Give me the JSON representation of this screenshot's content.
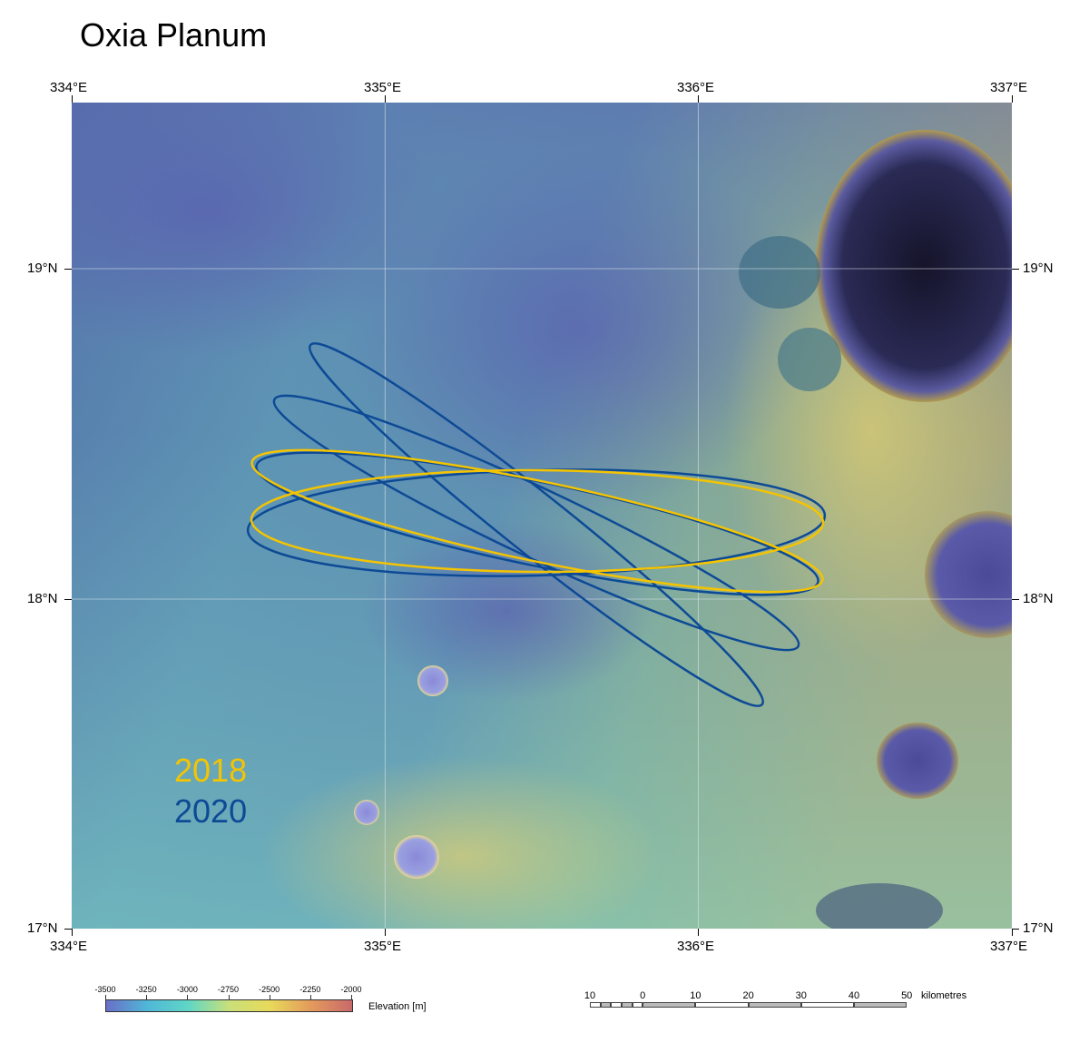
{
  "title": "Oxia Planum",
  "longitude_labels": [
    "334°E",
    "335°E",
    "336°E",
    "337°E"
  ],
  "latitude_labels": [
    "19°N",
    "18°N",
    "17°N"
  ],
  "legend": {
    "years": [
      {
        "label": "2018",
        "color": "#f5c400"
      },
      {
        "label": "2020",
        "color": "#0d4a96"
      }
    ]
  },
  "elevation_bar": {
    "ticks": [
      "-3500",
      "-3250",
      "-3000",
      "-2750",
      "-2500",
      "-2250",
      "-2000"
    ],
    "label": "Elevation [m]",
    "colors": [
      "#6a6fc8",
      "#4fb7d8",
      "#5fd6c6",
      "#c9e07a",
      "#e8d95a",
      "#e49a5c",
      "#c96a6a"
    ]
  },
  "scale_bar": {
    "ticks": [
      "10",
      "0",
      "10",
      "20",
      "30",
      "40",
      "50"
    ],
    "unit": "kilometres"
  }
}
